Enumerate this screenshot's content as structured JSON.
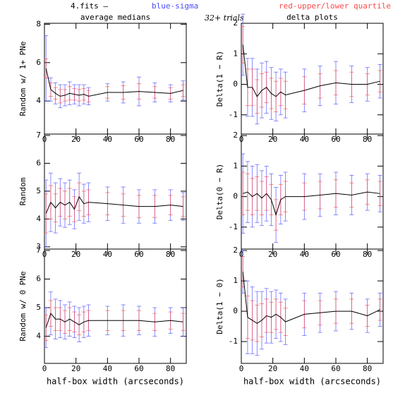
{
  "header": {
    "file": "4.fits —",
    "sigma": "blue-sigma",
    "quartile": "red-upper/lower quartile",
    "trials": "32+ trials",
    "sigma_color": "#4a4aff",
    "quartile_color": "#ff4a4a"
  },
  "chart_data": [
    {
      "type": "errorbar",
      "title": "average medians",
      "ylabel": "Random w/ 1+ PNe",
      "column": 0,
      "row": 0,
      "x": [
        1,
        4,
        7,
        10,
        13,
        16,
        19,
        22,
        25,
        28,
        40,
        50,
        60,
        70,
        80,
        88
      ],
      "values": [
        5.7,
        4.6,
        4.4,
        4.25,
        4.3,
        4.4,
        4.35,
        4.3,
        4.35,
        4.25,
        4.45,
        4.45,
        4.5,
        4.45,
        4.4,
        4.55
      ],
      "sigma": [
        1.7,
        0.6,
        0.55,
        0.6,
        0.55,
        0.6,
        0.5,
        0.55,
        0.5,
        0.45,
        0.45,
        0.55,
        0.75,
        0.5,
        0.45,
        0.5
      ],
      "quartile": [
        0.5,
        0.35,
        0.3,
        0.35,
        0.3,
        0.35,
        0.3,
        0.3,
        0.3,
        0.3,
        0.3,
        0.35,
        0.4,
        0.3,
        0.3,
        0.3
      ],
      "xlim": [
        0,
        90
      ],
      "xticks": [
        0,
        20,
        40,
        60,
        80
      ],
      "ylim": [
        2.28,
        8.05
      ],
      "yticks": [
        4,
        6,
        8
      ]
    },
    {
      "type": "errorbar",
      "ylabel": "Random",
      "column": 0,
      "row": 1,
      "x": [
        1,
        4,
        7,
        10,
        13,
        16,
        19,
        22,
        25,
        28,
        40,
        50,
        60,
        70,
        80,
        88
      ],
      "values": [
        4.2,
        4.6,
        4.4,
        4.6,
        4.5,
        4.6,
        4.35,
        4.8,
        4.55,
        4.6,
        4.55,
        4.5,
        4.45,
        4.45,
        4.5,
        4.45
      ],
      "sigma": [
        1.2,
        1.05,
        0.9,
        0.85,
        0.8,
        0.8,
        0.7,
        0.85,
        0.7,
        0.7,
        0.6,
        0.65,
        0.6,
        0.6,
        0.55,
        0.5
      ],
      "quartile": [
        0.7,
        0.6,
        0.5,
        0.5,
        0.5,
        0.5,
        0.45,
        0.5,
        0.45,
        0.45,
        0.4,
        0.4,
        0.4,
        0.4,
        0.35,
        0.35
      ],
      "xlim": [
        0,
        90
      ],
      "xticks": [
        0,
        20,
        40,
        60,
        80
      ],
      "ylim": [
        2.92,
        7.05
      ],
      "yticks": [
        3,
        4,
        5,
        6,
        7
      ]
    },
    {
      "type": "errorbar",
      "ylabel": "Random w/ 0 PNe",
      "xlabel": "half-box width (arcseconds)",
      "column": 0,
      "row": 2,
      "x": [
        1,
        4,
        7,
        10,
        13,
        16,
        19,
        22,
        25,
        28,
        40,
        50,
        60,
        70,
        80,
        88
      ],
      "values": [
        4.3,
        4.8,
        4.6,
        4.6,
        4.5,
        4.6,
        4.5,
        4.4,
        4.5,
        4.55,
        4.55,
        4.55,
        4.55,
        4.5,
        4.55,
        4.5
      ],
      "sigma": [
        0.7,
        0.75,
        0.7,
        0.65,
        0.6,
        0.6,
        0.55,
        0.6,
        0.55,
        0.55,
        0.5,
        0.55,
        0.5,
        0.5,
        0.45,
        0.5
      ],
      "quartile": [
        0.45,
        0.45,
        0.4,
        0.4,
        0.4,
        0.4,
        0.35,
        0.35,
        0.35,
        0.35,
        0.35,
        0.35,
        0.35,
        0.3,
        0.3,
        0.3
      ],
      "xlim": [
        0,
        90
      ],
      "xticks": [
        0,
        20,
        40,
        60,
        80
      ],
      "ylim": [
        3.05,
        7.05
      ],
      "yticks": [
        4,
        5,
        6,
        7
      ]
    },
    {
      "type": "errorbar",
      "title": "delta plots",
      "ylabel": "Delta(1 − R)",
      "column": 1,
      "row": 0,
      "x": [
        1,
        4,
        7,
        10,
        13,
        16,
        19,
        22,
        25,
        28,
        40,
        50,
        60,
        70,
        80,
        88
      ],
      "values": [
        1.3,
        -0.1,
        -0.1,
        -0.4,
        -0.2,
        -0.1,
        -0.3,
        -0.4,
        -0.25,
        -0.35,
        -0.2,
        -0.05,
        0.05,
        0.0,
        0.0,
        0.1
      ],
      "sigma": [
        1.0,
        0.95,
        0.95,
        0.9,
        0.9,
        0.85,
        0.85,
        0.8,
        0.75,
        0.75,
        0.7,
        0.65,
        0.7,
        0.6,
        0.55,
        0.55
      ],
      "quartile": [
        0.6,
        0.6,
        0.6,
        0.55,
        0.55,
        0.5,
        0.5,
        0.5,
        0.45,
        0.45,
        0.45,
        0.4,
        0.4,
        0.4,
        0.35,
        0.35
      ],
      "xlim": [
        0,
        90
      ],
      "xticks": [
        0,
        20,
        40,
        60,
        80
      ],
      "ylim": [
        -1.63,
        2.0
      ],
      "yticks": [
        -1,
        0,
        1,
        2
      ]
    },
    {
      "type": "errorbar",
      "ylabel": "Delta(0 − R)",
      "column": 1,
      "row": 1,
      "x": [
        1,
        4,
        7,
        10,
        13,
        16,
        19,
        22,
        25,
        28,
        40,
        50,
        60,
        70,
        80,
        88
      ],
      "values": [
        0.1,
        0.15,
        0.0,
        0.1,
        -0.05,
        0.1,
        -0.1,
        -0.6,
        -0.1,
        0.0,
        0.0,
        0.05,
        0.1,
        0.05,
        0.15,
        0.1
      ],
      "sigma": [
        1.3,
        1.0,
        1.0,
        0.95,
        0.9,
        0.9,
        0.85,
        0.9,
        0.8,
        0.8,
        0.75,
        0.7,
        0.7,
        0.65,
        0.6,
        0.6
      ],
      "quartile": [
        0.7,
        0.6,
        0.6,
        0.55,
        0.55,
        0.55,
        0.5,
        0.5,
        0.5,
        0.5,
        0.45,
        0.45,
        0.45,
        0.4,
        0.4,
        0.4
      ],
      "xlim": [
        0,
        90
      ],
      "xticks": [
        0,
        20,
        40,
        60,
        80
      ],
      "ylim": [
        -1.72,
        2.05
      ],
      "yticks": [
        -1,
        0,
        1,
        2
      ]
    },
    {
      "type": "errorbar",
      "ylabel": "Delta(1 − 0)",
      "xlabel": "half-box width (arcseconds)",
      "column": 1,
      "row": 2,
      "x": [
        1,
        4,
        7,
        10,
        13,
        16,
        19,
        22,
        25,
        28,
        40,
        50,
        60,
        70,
        80,
        88
      ],
      "values": [
        1.3,
        -0.2,
        -0.3,
        -0.4,
        -0.3,
        -0.15,
        -0.2,
        -0.1,
        -0.2,
        -0.35,
        -0.1,
        -0.05,
        0.0,
        0.0,
        -0.15,
        0.05
      ],
      "sigma": [
        0.7,
        1.2,
        1.1,
        1.05,
        0.95,
        0.9,
        0.85,
        0.8,
        0.8,
        0.75,
        0.7,
        0.65,
        0.65,
        0.6,
        0.55,
        0.55
      ],
      "quartile": [
        0.5,
        0.7,
        0.65,
        0.6,
        0.55,
        0.55,
        0.5,
        0.5,
        0.5,
        0.45,
        0.45,
        0.4,
        0.4,
        0.4,
        0.35,
        0.35
      ],
      "xlim": [
        0,
        90
      ],
      "xticks": [
        0,
        20,
        40,
        60,
        80
      ],
      "ylim": [
        -1.72,
        2.05
      ],
      "yticks": [
        -1,
        0,
        1,
        2
      ]
    }
  ]
}
